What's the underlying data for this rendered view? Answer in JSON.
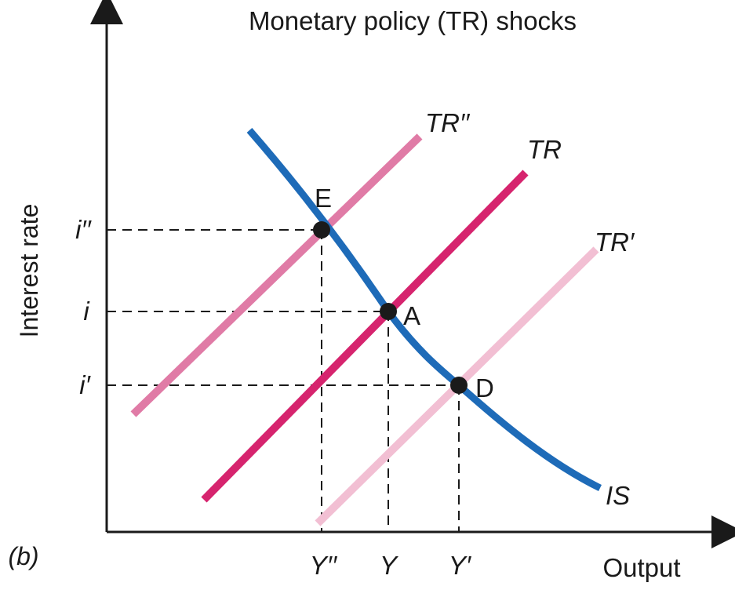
{
  "title": "Monetary policy (TR) shocks",
  "panel_label": "(b)",
  "x_axis_label": "Output",
  "y_axis_label": "Interest rate",
  "colors": {
    "axes": "#1a1a1a",
    "is_curve": "#1e6bb8",
    "tr": "#d6246e",
    "tr_double_prime": "#e07ba6",
    "tr_prime": "#f2bfd3",
    "points": "#1a1a1a",
    "dashed_guides": "#1a1a1a"
  },
  "curves": {
    "is": "IS",
    "tr": "TR",
    "tr_double_prime": "TR′′",
    "tr_prime": "TR′"
  },
  "points": {
    "e": "E",
    "a": "A",
    "d": "D"
  },
  "y_ticks": {
    "i_double_prime": "i′′",
    "i": "i",
    "i_prime": "i′"
  },
  "x_ticks": {
    "y_double_prime": "Y′′",
    "y": "Y",
    "y_prime": "Y′"
  }
}
